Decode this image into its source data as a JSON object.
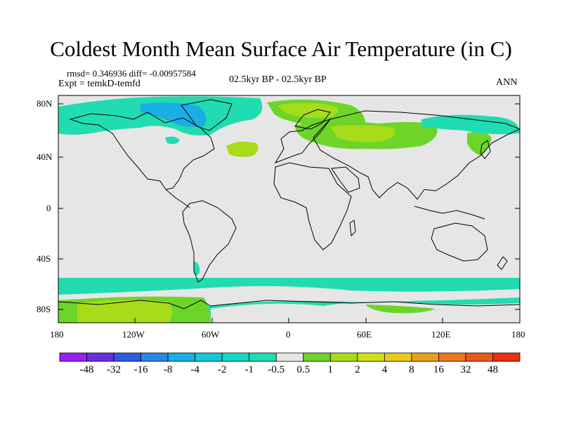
{
  "title": "Coldest Month Mean Surface Air Temperature (in C)",
  "stats": "rmsd= 0.346936  diff= -0.00957584",
  "experiment": "Expt = temkD-temfd",
  "period": "02.5kyr BP - 02.5kyr BP",
  "season": "ANN",
  "lat_ticks": [
    "80N",
    "40N",
    "0",
    "40S",
    "80S"
  ],
  "lon_ticks": [
    "180",
    "120W",
    "60W",
    "0",
    "60E",
    "120E",
    "180"
  ],
  "colorbar": {
    "labels": [
      "-48",
      "-32",
      "-16",
      "-8",
      "-4",
      "-2",
      "-1",
      "-0.5",
      "0.5",
      "1",
      "2",
      "4",
      "8",
      "16",
      "32",
      "48"
    ],
    "colors": [
      "#9b1ff0",
      "#6a2ee0",
      "#2d5be8",
      "#2a86e6",
      "#19aee6",
      "#14c8d8",
      "#16d6c4",
      "#20dcb0",
      "#e6e6e6",
      "#6dd42a",
      "#a6dc1a",
      "#cde01c",
      "#e6cc1c",
      "#e6a01c",
      "#e67a1c",
      "#e85a1a",
      "#e83010"
    ]
  },
  "colors": {
    "neutral": "#e6e6e6",
    "coast": "#000000"
  }
}
